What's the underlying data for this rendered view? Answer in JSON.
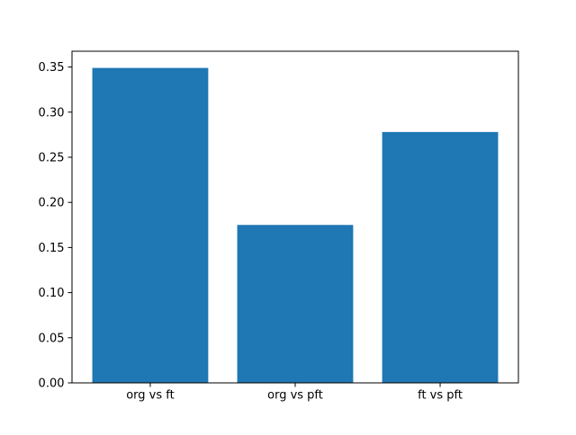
{
  "chart_data": {
    "type": "bar",
    "title": "",
    "xlabel": "",
    "ylabel": "",
    "categories": [
      "org vs ft",
      "org vs pft",
      "ft vs pft"
    ],
    "values": [
      0.349,
      0.175,
      0.278
    ],
    "bar_color": "#1f77b4",
    "bar_width_data_units": 0.8,
    "xlim": [
      -0.54,
      2.54
    ],
    "ylim": [
      0,
      0.3675
    ],
    "yticks": [
      0.0,
      0.05,
      0.1,
      0.15,
      0.2,
      0.25,
      0.3,
      0.35
    ],
    "ytick_labels": [
      "0.00",
      "0.05",
      "0.10",
      "0.15",
      "0.20",
      "0.25",
      "0.30",
      "0.35"
    ],
    "grid": false,
    "legend": null,
    "axes_color": "#000000",
    "background_color": "#ffffff"
  }
}
